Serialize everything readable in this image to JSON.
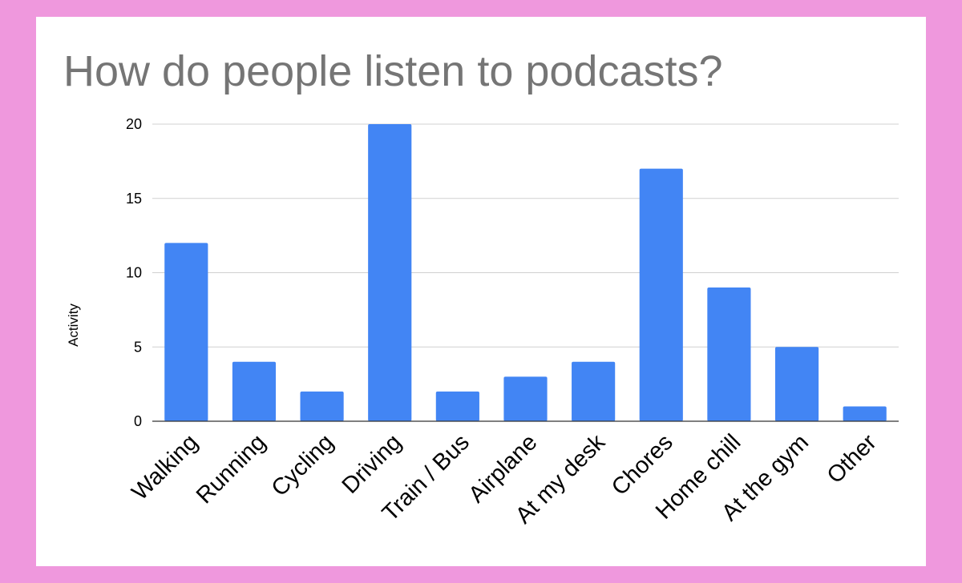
{
  "colors": {
    "background": "#ef98dd",
    "panel": "#ffffff",
    "title": "#757575",
    "bar": "#4285f4",
    "gridline": "#d0d0d0",
    "axis": "#333333",
    "text": "#000000"
  },
  "chart_data": {
    "type": "bar",
    "title": "How do people listen to podcasts?",
    "xlabel": "",
    "ylabel": "Activity",
    "ylim": [
      0,
      20
    ],
    "yticks": [
      0,
      5,
      10,
      15,
      20
    ],
    "grid": true,
    "categories": [
      "Walking",
      "Running",
      "Cycling",
      "Driving",
      "Train / Bus",
      "Airplane",
      "At my desk",
      "Chores",
      "Home chill",
      "At the gym",
      "Other"
    ],
    "values": [
      12,
      4,
      2,
      20,
      2,
      3,
      4,
      17,
      9,
      5,
      1
    ]
  }
}
